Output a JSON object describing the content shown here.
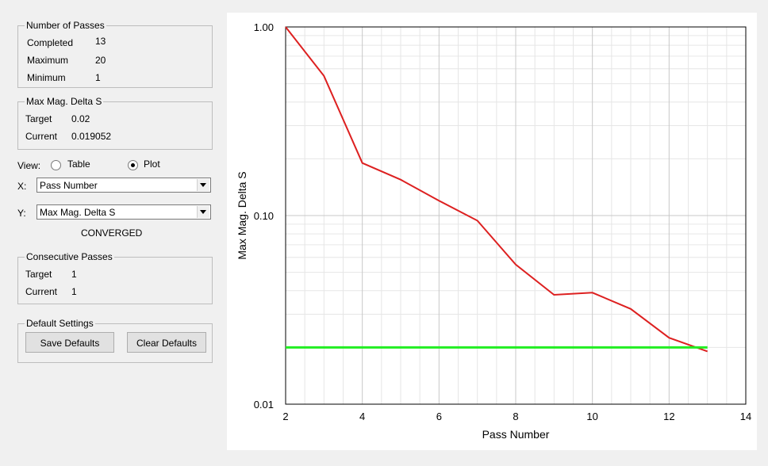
{
  "passes": {
    "legend": "Number of Passes",
    "completed_label": "Completed",
    "completed_value": "13",
    "maximum_label": "Maximum",
    "maximum_value": "20",
    "minimum_label": "Minimum",
    "minimum_value": "1"
  },
  "delta": {
    "legend": "Max Mag. Delta S",
    "target_label": "Target",
    "target_value": "0.02",
    "current_label": "Current",
    "current_value": "0.019052"
  },
  "view": {
    "label": "View:",
    "options": [
      "Table",
      "Plot"
    ],
    "selected": "Plot"
  },
  "x_select": {
    "label": "X:",
    "value": "Pass Number"
  },
  "y_select": {
    "label": "Y:",
    "value": "Max Mag. Delta S"
  },
  "status": "CONVERGED",
  "consecutive": {
    "legend": "Consecutive Passes",
    "target_label": "Target",
    "target_value": "1",
    "current_label": "Current",
    "current_value": "1"
  },
  "defaults": {
    "legend": "Default Settings",
    "save_label": "Save Defaults",
    "clear_label": "Clear Defaults"
  },
  "chart_data": {
    "type": "line",
    "xlabel": "Pass Number",
    "ylabel": "Max Mag. Delta S",
    "xlim": [
      2,
      14
    ],
    "ylim": [
      0.01,
      1.0
    ],
    "yscale": "log",
    "xticks": [
      "2",
      "4",
      "6",
      "8",
      "10",
      "12",
      "14"
    ],
    "yticks": [
      "0.01",
      "0.10",
      "1.00"
    ],
    "grid": true,
    "series": [
      {
        "color": "#dd2020",
        "x": [
          2,
          3,
          4,
          5,
          6,
          7,
          8,
          9,
          10,
          11,
          12,
          13
        ],
        "values": [
          1.0,
          0.55,
          0.19,
          0.155,
          0.12,
          0.094,
          0.055,
          0.038,
          0.039,
          0.032,
          0.0225,
          0.019052
        ]
      },
      {
        "color": "#22ee22",
        "x": [
          2,
          13
        ],
        "values": [
          0.02,
          0.02
        ]
      }
    ]
  }
}
